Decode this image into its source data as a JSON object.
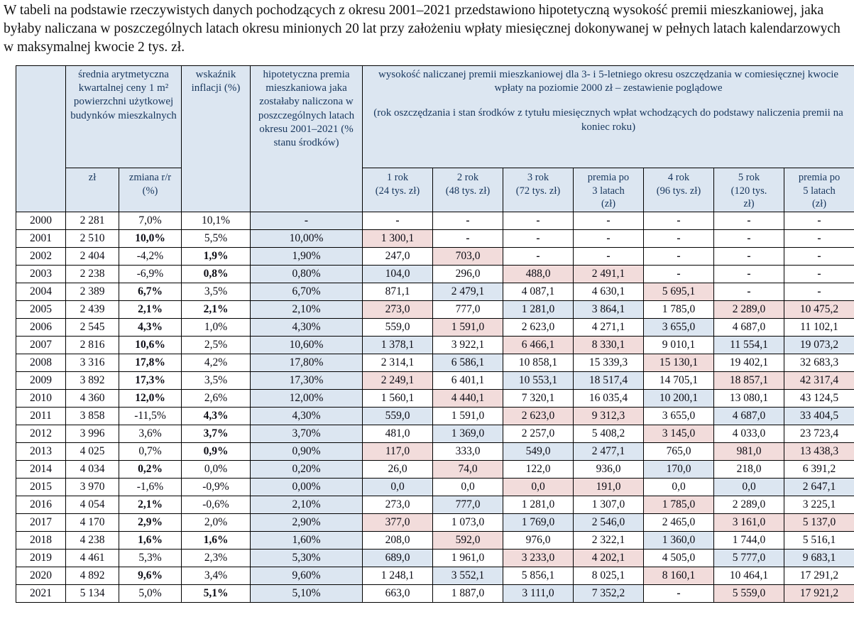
{
  "intro": "W tabeli na podstawie rzeczywistych danych pochodzących z okresu 2001–2021 przedstawiono hipotetyczną wysokość premii mieszkaniowej, jaka byłaby naliczana w poszczególnych latach okresu minionych 20 lat przy założeniu wpłaty miesięcznej dokonywanej w pełnych latach kalendarzowych w maksymalnej kwocie 2 tys. zł.",
  "table": {
    "colors": {
      "header_and_blue_cells": "#dce6f1",
      "pink_cells": "#f2dcdb",
      "header_text": "#17365d"
    },
    "header": {
      "price_group": "średnia arytmetyczna kwartalnej ceny 1 m² powierzchni użytkowej budynków mieszkalnych",
      "price_unit": "zł",
      "price_change": "zmiana r/r (%)",
      "inflation": "wskaźnik inflacji (%)",
      "premium": "hipotetyczna premia mieszkaniowa jaka zostałaby naliczona w poszczególnych latach okresu 2001–2021 (% stanu środków)",
      "savings_group_line1": "wysokość naliczanej premii mieszkaniowej dla 3- i 5-letniego okresu oszczędzania w comiesięcznej kwocie wpłaty na poziomie 2000 zł – zestawienie poglądowe",
      "savings_group_line2": "(rok oszczędzania i stan środków z tytułu miesięcznych wpłat wchodzących do podstawy naliczenia premii na koniec roku)",
      "savings_cols": [
        "1 rok\n(24 tys. zł)",
        "2 rok\n(48 tys. zł)",
        "3 rok\n(72 tys. zł)",
        "premia po\n3 latach\n(zł)",
        "4 rok\n(96 tys. zł)",
        "5 rok\n(120 tys.\nzł)",
        "premia po\n5 latach\n(zł)"
      ]
    },
    "rows": [
      {
        "year": "2000",
        "price": "2 281",
        "change": "7,0%",
        "change_bold": false,
        "inflation": "10,1%",
        "inflation_bold": false,
        "premium": "-",
        "cells": [
          [
            "-",
            ""
          ],
          [
            "-",
            ""
          ],
          [
            "-",
            ""
          ],
          [
            "-",
            ""
          ],
          [
            "-",
            ""
          ],
          [
            "-",
            ""
          ],
          [
            "-",
            ""
          ]
        ]
      },
      {
        "year": "2001",
        "price": "2 510",
        "change": "10,0%",
        "change_bold": true,
        "inflation": "5,5%",
        "inflation_bold": false,
        "premium": "10,00%",
        "cells": [
          [
            "1 300,1",
            "pink"
          ],
          [
            "-",
            ""
          ],
          [
            "-",
            ""
          ],
          [
            "-",
            ""
          ],
          [
            "-",
            ""
          ],
          [
            "-",
            ""
          ],
          [
            "-",
            ""
          ]
        ]
      },
      {
        "year": "2002",
        "price": "2 404",
        "change": "-4,2%",
        "change_bold": false,
        "inflation": "1,9%",
        "inflation_bold": true,
        "premium": "1,90%",
        "cells": [
          [
            "247,0",
            ""
          ],
          [
            "703,0",
            "pink"
          ],
          [
            "-",
            ""
          ],
          [
            "-",
            ""
          ],
          [
            "-",
            ""
          ],
          [
            "-",
            ""
          ],
          [
            "-",
            ""
          ]
        ]
      },
      {
        "year": "2003",
        "price": "2 238",
        "change": "-6,9%",
        "change_bold": false,
        "inflation": "0,8%",
        "inflation_bold": true,
        "premium": "0,80%",
        "cells": [
          [
            "104,0",
            "blue"
          ],
          [
            "296,0",
            ""
          ],
          [
            "488,0",
            "pink"
          ],
          [
            "2 491,1",
            "pink"
          ],
          [
            "-",
            ""
          ],
          [
            "-",
            ""
          ],
          [
            "-",
            ""
          ]
        ]
      },
      {
        "year": "2004",
        "price": "2 389",
        "change": "6,7%",
        "change_bold": true,
        "inflation": "3,5%",
        "inflation_bold": false,
        "premium": "6,70%",
        "cells": [
          [
            "871,1",
            ""
          ],
          [
            "2 479,1",
            "blue"
          ],
          [
            "4 087,1",
            ""
          ],
          [
            "4 630,1",
            ""
          ],
          [
            "5 695,1",
            "pink"
          ],
          [
            "-",
            ""
          ],
          [
            "-",
            ""
          ]
        ]
      },
      {
        "year": "2005",
        "price": "2 439",
        "change": "2,1%",
        "change_bold": true,
        "inflation": "2,1%",
        "inflation_bold": true,
        "premium": "2,10%",
        "cells": [
          [
            "273,0",
            "pink"
          ],
          [
            "777,0",
            ""
          ],
          [
            "1 281,0",
            "blue"
          ],
          [
            "3 864,1",
            "blue"
          ],
          [
            "1 785,0",
            ""
          ],
          [
            "2 289,0",
            "pink"
          ],
          [
            "10 475,2",
            "pink"
          ]
        ]
      },
      {
        "year": "2006",
        "price": "2 545",
        "change": "4,3%",
        "change_bold": true,
        "inflation": "1,0%",
        "inflation_bold": false,
        "premium": "4,30%",
        "cells": [
          [
            "559,0",
            ""
          ],
          [
            "1 591,0",
            "pink"
          ],
          [
            "2 623,0",
            ""
          ],
          [
            "4 271,1",
            ""
          ],
          [
            "3 655,0",
            "blue"
          ],
          [
            "4 687,0",
            ""
          ],
          [
            "11 102,1",
            ""
          ]
        ]
      },
      {
        "year": "2007",
        "price": "2 816",
        "change": "10,6%",
        "change_bold": true,
        "inflation": "2,5%",
        "inflation_bold": false,
        "premium": "10,60%",
        "cells": [
          [
            "1 378,1",
            "blue"
          ],
          [
            "3 922,1",
            ""
          ],
          [
            "6 466,1",
            "pink"
          ],
          [
            "8 330,1",
            "pink"
          ],
          [
            "9 010,1",
            ""
          ],
          [
            "11 554,1",
            "blue"
          ],
          [
            "19 073,2",
            "blue"
          ]
        ]
      },
      {
        "year": "2008",
        "price": "3 316",
        "change": "17,8%",
        "change_bold": true,
        "inflation": "4,2%",
        "inflation_bold": false,
        "premium": "17,80%",
        "cells": [
          [
            "2 314,1",
            ""
          ],
          [
            "6 586,1",
            "blue"
          ],
          [
            "10 858,1",
            ""
          ],
          [
            "15 339,3",
            ""
          ],
          [
            "15 130,1",
            "pink"
          ],
          [
            "19 402,1",
            ""
          ],
          [
            "32 683,3",
            ""
          ]
        ]
      },
      {
        "year": "2009",
        "price": "3 892",
        "change": "17,3%",
        "change_bold": true,
        "inflation": "3,5%",
        "inflation_bold": false,
        "premium": "17,30%",
        "cells": [
          [
            "2 249,1",
            "pink"
          ],
          [
            "6 401,1",
            ""
          ],
          [
            "10 553,1",
            "blue"
          ],
          [
            "18 517,4",
            "blue"
          ],
          [
            "14 705,1",
            ""
          ],
          [
            "18 857,1",
            "pink"
          ],
          [
            "42 317,4",
            "pink"
          ]
        ]
      },
      {
        "year": "2010",
        "price": "4 360",
        "change": "12,0%",
        "change_bold": true,
        "inflation": "2,6%",
        "inflation_bold": false,
        "premium": "12,00%",
        "cells": [
          [
            "1 560,1",
            ""
          ],
          [
            "4 440,1",
            "pink"
          ],
          [
            "7 320,1",
            ""
          ],
          [
            "16 035,4",
            ""
          ],
          [
            "10 200,1",
            "blue"
          ],
          [
            "13 080,1",
            ""
          ],
          [
            "43 124,5",
            ""
          ]
        ]
      },
      {
        "year": "2011",
        "price": "3 858",
        "change": "-11,5%",
        "change_bold": false,
        "inflation": "4,3%",
        "inflation_bold": true,
        "premium": "4,30%",
        "cells": [
          [
            "559,0",
            "blue"
          ],
          [
            "1 591,0",
            ""
          ],
          [
            "2 623,0",
            "pink"
          ],
          [
            "9 312,3",
            "pink"
          ],
          [
            "3 655,0",
            ""
          ],
          [
            "4 687,0",
            "blue"
          ],
          [
            "33 404,5",
            "blue"
          ]
        ]
      },
      {
        "year": "2012",
        "price": "3 996",
        "change": "3,6%",
        "change_bold": false,
        "inflation": "3,7%",
        "inflation_bold": true,
        "premium": "3,70%",
        "cells": [
          [
            "481,0",
            ""
          ],
          [
            "1 369,0",
            "blue"
          ],
          [
            "2 257,0",
            ""
          ],
          [
            "5 408,2",
            ""
          ],
          [
            "3 145,0",
            "pink"
          ],
          [
            "4 033,0",
            ""
          ],
          [
            "23 723,4",
            ""
          ]
        ]
      },
      {
        "year": "2013",
        "price": "4 025",
        "change": "0,7%",
        "change_bold": false,
        "inflation": "0,9%",
        "inflation_bold": true,
        "premium": "0,90%",
        "cells": [
          [
            "117,0",
            "pink"
          ],
          [
            "333,0",
            ""
          ],
          [
            "549,0",
            "blue"
          ],
          [
            "2 477,1",
            "blue"
          ],
          [
            "765,0",
            ""
          ],
          [
            "981,0",
            "pink"
          ],
          [
            "13 438,3",
            "pink"
          ]
        ]
      },
      {
        "year": "2014",
        "price": "4 034",
        "change": "0,2%",
        "change_bold": true,
        "inflation": "0,0%",
        "inflation_bold": false,
        "premium": "0,20%",
        "cells": [
          [
            "26,0",
            ""
          ],
          [
            "74,0",
            "pink"
          ],
          [
            "122,0",
            ""
          ],
          [
            "936,0",
            ""
          ],
          [
            "170,0",
            "blue"
          ],
          [
            "218,0",
            ""
          ],
          [
            "6 391,2",
            ""
          ]
        ]
      },
      {
        "year": "2015",
        "price": "3 970",
        "change": "-1,6%",
        "change_bold": false,
        "inflation": "-0,9%",
        "inflation_bold": false,
        "premium": "0,00%",
        "cells": [
          [
            "0,0",
            "blue"
          ],
          [
            "0,0",
            ""
          ],
          [
            "0,0",
            "pink"
          ],
          [
            "191,0",
            "pink"
          ],
          [
            "0,0",
            ""
          ],
          [
            "0,0",
            "blue"
          ],
          [
            "2 647,1",
            "blue"
          ]
        ]
      },
      {
        "year": "2016",
        "price": "4 054",
        "change": "2,1%",
        "change_bold": true,
        "inflation": "-0,6%",
        "inflation_bold": false,
        "premium": "2,10%",
        "cells": [
          [
            "273,0",
            ""
          ],
          [
            "777,0",
            "blue"
          ],
          [
            "1 281,0",
            ""
          ],
          [
            "1 307,0",
            ""
          ],
          [
            "1 785,0",
            "pink"
          ],
          [
            "2 289,0",
            ""
          ],
          [
            "3 225,1",
            ""
          ]
        ]
      },
      {
        "year": "2017",
        "price": "4 170",
        "change": "2,9%",
        "change_bold": true,
        "inflation": "2,0%",
        "inflation_bold": false,
        "premium": "2,90%",
        "cells": [
          [
            "377,0",
            "pink"
          ],
          [
            "1 073,0",
            ""
          ],
          [
            "1 769,0",
            "blue"
          ],
          [
            "2 546,0",
            "blue"
          ],
          [
            "2 465,0",
            ""
          ],
          [
            "3 161,0",
            "pink"
          ],
          [
            "5 137,0",
            "pink"
          ]
        ]
      },
      {
        "year": "2018",
        "price": "4 238",
        "change": "1,6%",
        "change_bold": true,
        "inflation": "1,6%",
        "inflation_bold": true,
        "premium": "1,60%",
        "cells": [
          [
            "208,0",
            ""
          ],
          [
            "592,0",
            "pink"
          ],
          [
            "976,0",
            ""
          ],
          [
            "2 322,1",
            ""
          ],
          [
            "1 360,0",
            "blue"
          ],
          [
            "1 744,0",
            ""
          ],
          [
            "5 516,1",
            ""
          ]
        ]
      },
      {
        "year": "2019",
        "price": "4 461",
        "change": "5,3%",
        "change_bold": false,
        "inflation": "2,3%",
        "inflation_bold": false,
        "premium": "5,30%",
        "cells": [
          [
            "689,0",
            "blue"
          ],
          [
            "1 961,0",
            ""
          ],
          [
            "3 233,0",
            "pink"
          ],
          [
            "4 202,1",
            "pink"
          ],
          [
            "4 505,0",
            ""
          ],
          [
            "5 777,0",
            "blue"
          ],
          [
            "9 683,1",
            "blue"
          ]
        ]
      },
      {
        "year": "2020",
        "price": "4 892",
        "change": "9,6%",
        "change_bold": true,
        "inflation": "3,4%",
        "inflation_bold": false,
        "premium": "9,60%",
        "cells": [
          [
            "1 248,1",
            ""
          ],
          [
            "3 552,1",
            "blue"
          ],
          [
            "5 856,1",
            ""
          ],
          [
            "8 025,1",
            ""
          ],
          [
            "8 160,1",
            "pink"
          ],
          [
            "10 464,1",
            ""
          ],
          [
            "17 291,2",
            ""
          ]
        ]
      },
      {
        "year": "2021",
        "price": "5 134",
        "change": "5,0%",
        "change_bold": false,
        "inflation": "5,1%",
        "inflation_bold": true,
        "premium": "5,10%",
        "cells": [
          [
            "663,0",
            ""
          ],
          [
            "1 887,0",
            ""
          ],
          [
            "3 111,0",
            "blue"
          ],
          [
            "7 352,2",
            "blue"
          ],
          [
            "-",
            ""
          ],
          [
            "5 559,0",
            "pink"
          ],
          [
            "17 921,2",
            "pink"
          ]
        ]
      }
    ]
  }
}
